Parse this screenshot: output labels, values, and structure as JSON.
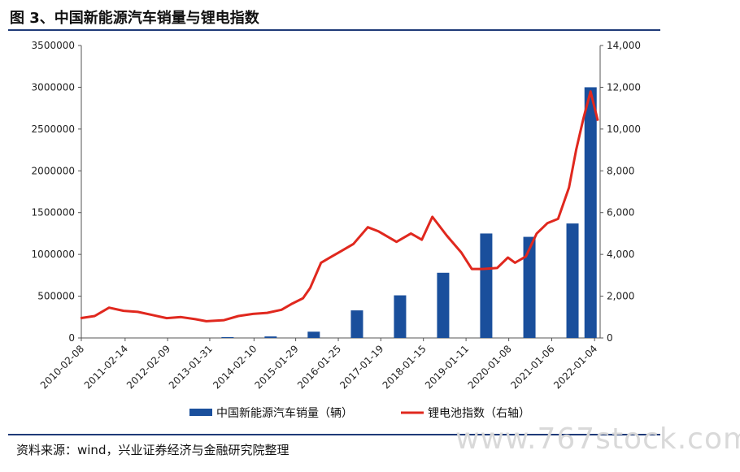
{
  "page": {
    "title": "图 3、中国新能源汽车销量与锂电指数",
    "source": "资料来源：wind，兴业证券经济与金融研究院整理",
    "watermark": "www.767stock.com"
  },
  "colors": {
    "bar": "#1a4f9c",
    "line": "#e0281e",
    "rule": "#1f3a78",
    "axis": "#555555"
  },
  "chart_data": {
    "type": "bar",
    "title": "图 3、中国新能源汽车销量与锂电指数",
    "x_tick_labels": [
      "2010-02-08",
      "2011-02-14",
      "2012-02-09",
      "2013-01-31",
      "2014-02-10",
      "2015-01-29",
      "2016-01-25",
      "2017-01-19",
      "2018-01-15",
      "2019-01-11",
      "2020-01-08",
      "2021-01-06",
      "2022-01-04"
    ],
    "y_left": {
      "ylim": [
        0,
        3500000
      ],
      "ticks": [
        0,
        500000,
        1000000,
        1500000,
        2000000,
        2500000,
        3000000,
        3500000
      ],
      "tick_labels": [
        "0",
        "500000",
        "1000000",
        "1500000",
        "2000000",
        "2500000",
        "3000000",
        "3500000"
      ]
    },
    "y_right": {
      "ylim": [
        0,
        14000
      ],
      "ticks": [
        0,
        2000,
        4000,
        6000,
        8000,
        10000,
        12000,
        14000
      ],
      "tick_labels": [
        "0",
        "2,000",
        "4,000",
        "6,000",
        "8,000",
        "10,000",
        "12,000",
        "14,000"
      ]
    },
    "legend": {
      "placement": "bottom",
      "items": [
        "中国新能源汽车销量（辆）",
        "锂电池指数（右轴）"
      ]
    },
    "series": [
      {
        "name": "中国新能源汽车销量（辆）",
        "type": "bar",
        "axis": "left",
        "x": [
          "2010",
          "2011",
          "2012",
          "2013",
          "2014",
          "2015",
          "2016",
          "2017",
          "2018",
          "2019",
          "2020",
          "2021",
          "2021-12"
        ],
        "values": [
          0,
          0,
          0,
          10000,
          18000,
          75000,
          330000,
          510000,
          780000,
          1250000,
          1210000,
          1370000,
          3000000
        ]
      },
      {
        "name": "锂电池指数（右轴）",
        "type": "line",
        "axis": "right",
        "x": [
          "2010-02",
          "2010-06",
          "2010-10",
          "2011-02",
          "2011-06",
          "2011-10",
          "2012-02",
          "2012-06",
          "2012-10",
          "2013-01",
          "2013-06",
          "2013-10",
          "2014-02",
          "2014-06",
          "2014-10",
          "2015-01",
          "2015-04",
          "2015-06",
          "2015-09",
          "2015-12",
          "2016-02",
          "2016-06",
          "2016-10",
          "2017-01",
          "2017-06",
          "2017-10",
          "2018-01",
          "2018-04",
          "2018-08",
          "2018-12",
          "2019-03",
          "2019-06",
          "2019-10",
          "2020-01",
          "2020-03",
          "2020-06",
          "2020-09",
          "2020-12",
          "2021-03",
          "2021-06",
          "2021-08",
          "2021-10",
          "2021-12",
          "2022-02"
        ],
        "values": [
          950,
          1050,
          1450,
          1300,
          1250,
          1100,
          950,
          1000,
          900,
          800,
          850,
          1050,
          1150,
          1200,
          1350,
          1650,
          1900,
          2400,
          3600,
          3900,
          4100,
          4500,
          5300,
          5100,
          4600,
          5000,
          4700,
          5800,
          4900,
          4100,
          3300,
          3300,
          3350,
          3850,
          3600,
          3900,
          5000,
          5500,
          5700,
          7200,
          9000,
          10500,
          11800,
          10400
        ]
      }
    ]
  }
}
